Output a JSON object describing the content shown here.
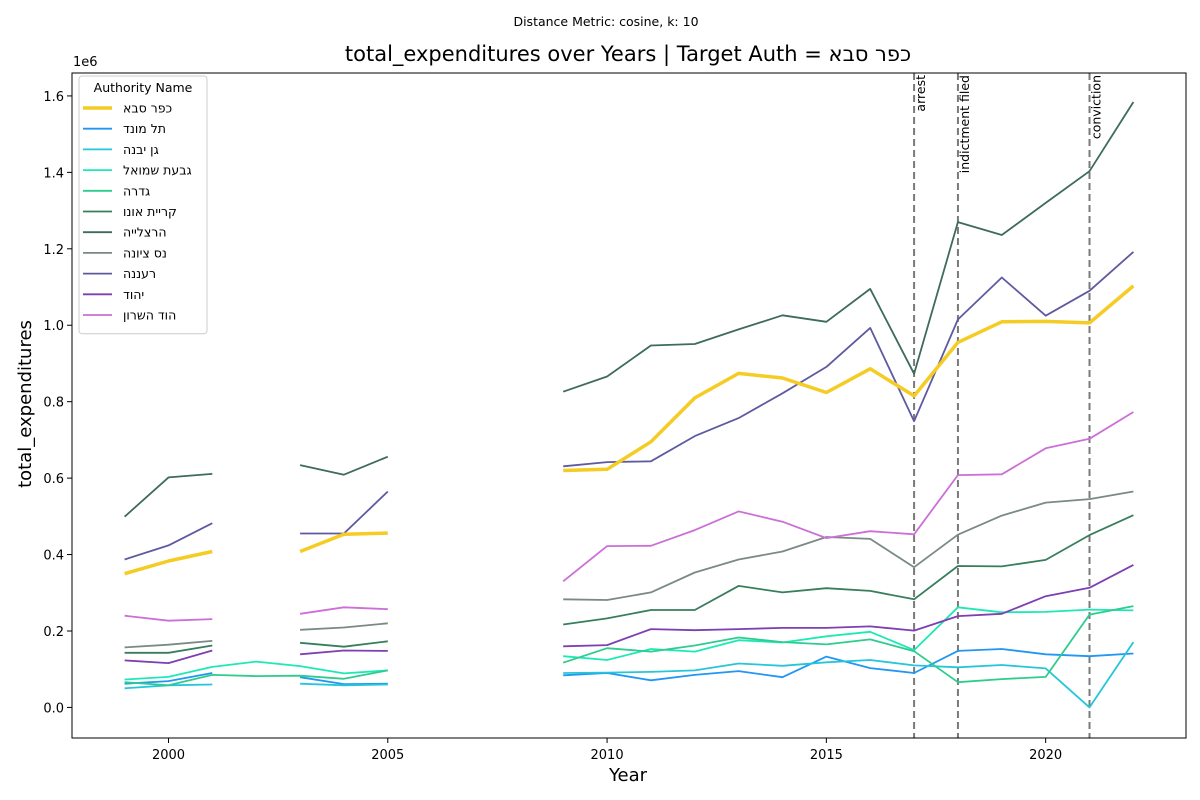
{
  "chart_data": {
    "type": "line",
    "suptitle": "Distance Metric: cosine, k: 10",
    "title": "total_expenditures over Years | Target Auth = כפר סבא",
    "xlabel": "Year",
    "ylabel": "total_expenditures",
    "y_multiplier_label": "1e6",
    "xlim": [
      1997.8,
      2023.2
    ],
    "ylim": [
      -0.08,
      1.66
    ],
    "x_ticks": [
      2000,
      2005,
      2010,
      2015,
      2020
    ],
    "y_ticks": [
      0.0,
      0.2,
      0.4,
      0.6,
      0.8,
      1.0,
      1.2,
      1.4,
      1.6
    ],
    "y_tick_labels": [
      "0.0",
      "0.2",
      "0.4",
      "0.6",
      "0.8",
      "1.0",
      "1.2",
      "1.4",
      "1.6"
    ],
    "grid": false,
    "legend": {
      "title": "Authority Name",
      "placement": "top-left"
    },
    "years": [
      1999,
      2000,
      2001,
      2002,
      2003,
      2004,
      2005,
      2006,
      2007,
      2008,
      2009,
      2010,
      2011,
      2012,
      2013,
      2014,
      2015,
      2016,
      2017,
      2018,
      2019,
      2020,
      2021,
      2022
    ],
    "series": [
      {
        "name": "כפר סבא",
        "color": "#f5cc24",
        "width": 3.5,
        "target": true,
        "values": [
          0.35,
          0.383,
          0.408,
          null,
          0.408,
          0.453,
          0.456,
          null,
          null,
          null,
          0.62,
          0.623,
          0.695,
          0.81,
          0.874,
          0.862,
          0.824,
          0.886,
          0.815,
          0.955,
          1.009,
          1.01,
          1.006,
          1.103
        ]
      },
      {
        "name": "תל מונד",
        "color": "#2196f3",
        "width": 1.8,
        "values": [
          0.062,
          0.069,
          0.09,
          null,
          0.079,
          0.061,
          0.062,
          null,
          null,
          null,
          0.084,
          0.09,
          0.071,
          0.085,
          0.095,
          0.079,
          0.133,
          0.103,
          0.09,
          0.148,
          0.153,
          0.139,
          0.134,
          0.141
        ]
      },
      {
        "name": "גן יבנה",
        "color": "#26c6da",
        "width": 1.8,
        "values": [
          0.05,
          0.058,
          0.06,
          null,
          0.062,
          0.058,
          0.06,
          null,
          null,
          null,
          0.09,
          0.091,
          0.093,
          0.097,
          0.115,
          0.109,
          0.118,
          0.124,
          0.11,
          0.105,
          0.111,
          0.102,
          0.0,
          0.171
        ]
      },
      {
        "name": "גבעת שמואל",
        "color": "#1de9b6",
        "width": 1.8,
        "values": [
          0.073,
          0.08,
          0.106,
          0.12,
          0.108,
          0.089,
          0.097,
          null,
          null,
          null,
          0.134,
          0.124,
          0.153,
          0.146,
          0.176,
          0.17,
          0.186,
          0.198,
          0.15,
          0.262,
          0.249,
          0.25,
          0.256,
          0.254
        ]
      },
      {
        "name": "גדרה",
        "color": "#2ecc8e",
        "width": 1.8,
        "values": [
          0.066,
          0.058,
          0.085,
          0.082,
          0.083,
          0.075,
          0.097,
          null,
          null,
          null,
          0.117,
          0.155,
          0.146,
          0.162,
          0.183,
          0.171,
          0.165,
          0.178,
          0.147,
          0.066,
          0.074,
          0.08,
          0.243,
          0.265
        ]
      },
      {
        "name": "קריית אונו",
        "color": "#387e5d",
        "width": 1.8,
        "values": [
          0.143,
          0.143,
          0.162,
          null,
          0.169,
          0.159,
          0.173,
          null,
          null,
          null,
          0.217,
          0.233,
          0.255,
          0.255,
          0.318,
          0.301,
          0.312,
          0.305,
          0.283,
          0.37,
          0.369,
          0.386,
          0.451,
          0.503
        ]
      },
      {
        "name": "הרצלייה",
        "color": "#3e6b5a",
        "width": 1.8,
        "values": [
          0.499,
          0.602,
          0.611,
          null,
          0.634,
          0.609,
          0.656,
          null,
          null,
          null,
          0.826,
          0.866,
          0.947,
          0.951,
          0.989,
          1.026,
          1.009,
          1.095,
          0.873,
          1.27,
          1.236,
          1.32,
          1.403,
          1.584
        ]
      },
      {
        "name": "נס ציונה",
        "color": "#7a8a84",
        "width": 1.8,
        "values": [
          0.157,
          0.164,
          0.174,
          null,
          0.203,
          0.209,
          0.22,
          null,
          null,
          null,
          0.283,
          0.281,
          0.301,
          0.353,
          0.387,
          0.408,
          0.446,
          0.441,
          0.367,
          0.452,
          0.502,
          0.536,
          0.545,
          0.565
        ]
      },
      {
        "name": "רעננה",
        "color": "#5e5aa0",
        "width": 1.8,
        "values": [
          0.387,
          0.424,
          0.482,
          null,
          0.455,
          0.455,
          0.565,
          null,
          null,
          null,
          0.631,
          0.642,
          0.644,
          0.71,
          0.757,
          0.822,
          0.891,
          0.993,
          0.749,
          1.015,
          1.125,
          1.025,
          1.09,
          1.192
        ]
      },
      {
        "name": "יהוד",
        "color": "#7e3fb2",
        "width": 1.8,
        "values": [
          0.123,
          0.116,
          0.149,
          null,
          0.139,
          0.149,
          0.148,
          null,
          null,
          null,
          0.16,
          0.163,
          0.205,
          0.202,
          0.205,
          0.208,
          0.208,
          0.212,
          0.201,
          0.239,
          0.245,
          0.291,
          0.313,
          0.373
        ]
      },
      {
        "name": "הוד השרון",
        "color": "#cc6fd6",
        "width": 1.8,
        "values": [
          0.24,
          0.227,
          0.231,
          null,
          0.245,
          0.262,
          0.257,
          null,
          null,
          null,
          0.33,
          0.422,
          0.423,
          0.464,
          0.513,
          0.486,
          0.443,
          0.461,
          0.453,
          0.608,
          0.61,
          0.678,
          0.703,
          0.773
        ]
      }
    ],
    "events": [
      {
        "year": 2017,
        "label": "arrest"
      },
      {
        "year": 2018,
        "label": "indictment filed"
      },
      {
        "year": 2021,
        "label": "conviction"
      }
    ]
  }
}
